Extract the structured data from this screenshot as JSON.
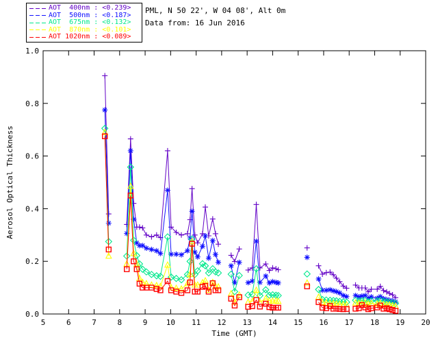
{
  "header": {
    "location_line": "PML, N 50 22', W 04 08', Alt 0m",
    "date_line": "Data from: 16 Jun 2016"
  },
  "legend": {
    "entries": [
      {
        "label": "AOT  400nm : <0.239>",
        "color": "#6100c6",
        "symbol": "plus"
      },
      {
        "label": "AOT  500nm : <0.187>",
        "color": "#0f0fff",
        "symbol": "asterisk"
      },
      {
        "label": "AOT  675nm : <0.132>",
        "color": "#00e88c",
        "symbol": "diamond"
      },
      {
        "label": "AOT  870nm : <0.101>",
        "color": "#ffff00",
        "symbol": "triangle"
      },
      {
        "label": "AOT 1020nm : <0.089>",
        "color": "#ff0000",
        "symbol": "square"
      }
    ]
  },
  "chart_data": {
    "type": "line",
    "title": "",
    "xlabel": "Time (GMT)",
    "ylabel": "Aerosol Optical Thickness",
    "xlim": [
      5,
      20
    ],
    "ylim": [
      0.0,
      1.0
    ],
    "xticks": [
      5,
      6,
      7,
      8,
      9,
      10,
      11,
      12,
      13,
      14,
      15,
      16,
      17,
      18,
      19,
      20
    ],
    "yticks": [
      0.0,
      0.2,
      0.4,
      0.6,
      0.8,
      1.0
    ],
    "ytick_labels": [
      "0.0",
      "0.2",
      "0.4",
      "0.6",
      "0.8",
      "1.0"
    ],
    "grid": false,
    "legend_position": "top-left-outside",
    "gap_threshold_hours": 0.3,
    "axis_color": "#000000",
    "x": [
      7.42,
      7.57,
      8.28,
      8.43,
      8.55,
      8.67,
      8.78,
      8.9,
      9.05,
      9.25,
      9.45,
      9.6,
      9.88,
      10.02,
      10.22,
      10.42,
      10.66,
      10.76,
      10.84,
      10.95,
      11.06,
      11.25,
      11.36,
      11.49,
      11.65,
      11.76,
      11.87,
      12.37,
      12.51,
      12.69,
      13.04,
      13.2,
      13.36,
      13.5,
      13.73,
      13.87,
      14.0,
      14.13,
      14.22,
      15.35,
      15.8,
      15.95,
      16.1,
      16.25,
      16.38,
      16.5,
      16.63,
      16.77,
      16.9,
      17.25,
      17.38,
      17.5,
      17.63,
      17.75,
      17.87,
      18.1,
      18.22,
      18.35,
      18.47,
      18.58,
      18.7,
      18.82
    ],
    "series": [
      {
        "name": "AOT 400nm",
        "mean": 0.239,
        "color": "#6100c6",
        "symbol": "plus",
        "values": [
          0.905,
          0.38,
          0.34,
          0.665,
          0.42,
          0.33,
          0.33,
          0.327,
          0.3,
          0.293,
          0.3,
          0.29,
          0.62,
          0.33,
          0.31,
          0.3,
          0.305,
          0.358,
          0.476,
          0.3,
          0.27,
          0.305,
          0.406,
          0.297,
          0.361,
          0.305,
          0.265,
          0.223,
          0.199,
          0.247,
          0.167,
          0.175,
          0.416,
          0.175,
          0.19,
          0.165,
          0.175,
          0.172,
          0.168,
          0.251,
          0.183,
          0.151,
          0.157,
          0.159,
          0.149,
          0.136,
          0.123,
          0.106,
          0.098,
          0.11,
          0.099,
          0.099,
          0.099,
          0.084,
          0.094,
          0.094,
          0.105,
          0.089,
          0.084,
          0.078,
          0.073,
          0.062
        ]
      },
      {
        "name": "AOT 500nm",
        "mean": 0.187,
        "color": "#0f0fff",
        "symbol": "asterisk",
        "values": [
          0.775,
          0.345,
          0.306,
          0.62,
          0.36,
          0.27,
          0.26,
          0.26,
          0.25,
          0.245,
          0.24,
          0.23,
          0.47,
          0.227,
          0.227,
          0.225,
          0.24,
          0.289,
          0.39,
          0.235,
          0.217,
          0.257,
          0.297,
          0.212,
          0.279,
          0.226,
          0.196,
          0.183,
          0.119,
          0.196,
          0.119,
          0.125,
          0.276,
          0.12,
          0.144,
          0.118,
          0.123,
          0.12,
          0.118,
          0.215,
          0.133,
          0.09,
          0.09,
          0.092,
          0.088,
          0.085,
          0.08,
          0.07,
          0.066,
          0.07,
          0.065,
          0.068,
          0.07,
          0.06,
          0.065,
          0.06,
          0.066,
          0.058,
          0.055,
          0.052,
          0.05,
          0.046
        ]
      },
      {
        "name": "AOT 675nm",
        "mean": 0.132,
        "color": "#00e88c",
        "symbol": "diamond",
        "values": [
          0.705,
          0.275,
          0.22,
          0.558,
          0.28,
          0.222,
          0.19,
          0.17,
          0.16,
          0.15,
          0.145,
          0.143,
          0.293,
          0.14,
          0.135,
          0.13,
          0.15,
          0.2,
          0.285,
          0.15,
          0.164,
          0.191,
          0.183,
          0.156,
          0.172,
          0.16,
          0.156,
          0.151,
          0.085,
          0.146,
          0.072,
          0.075,
          0.172,
          0.07,
          0.092,
          0.071,
          0.073,
          0.071,
          0.07,
          0.152,
          0.093,
          0.055,
          0.053,
          0.052,
          0.051,
          0.05,
          0.048,
          0.046,
          0.045,
          0.052,
          0.05,
          0.05,
          0.052,
          0.047,
          0.05,
          0.05,
          0.052,
          0.048,
          0.046,
          0.044,
          0.042,
          0.04
        ]
      },
      {
        "name": "AOT 870nm",
        "mean": 0.101,
        "color": "#ffff00",
        "symbol": "triangle",
        "values": [
          0.69,
          0.22,
          0.19,
          0.485,
          0.23,
          0.19,
          0.135,
          0.12,
          0.115,
          0.11,
          0.108,
          0.105,
          0.186,
          0.1,
          0.098,
          0.095,
          0.115,
          0.15,
          0.275,
          0.11,
          0.11,
          0.119,
          0.126,
          0.09,
          0.12,
          0.105,
          0.103,
          0.077,
          0.045,
          0.072,
          0.045,
          0.048,
          0.09,
          0.045,
          0.058,
          0.05,
          0.049,
          0.05,
          0.048,
          0.118,
          0.064,
          0.045,
          0.042,
          0.04,
          0.04,
          0.038,
          0.037,
          0.036,
          0.035,
          0.042,
          0.04,
          0.04,
          0.042,
          0.038,
          0.04,
          0.038,
          0.04,
          0.036,
          0.035,
          0.034,
          0.032,
          0.03
        ]
      },
      {
        "name": "AOT 1020nm",
        "mean": 0.089,
        "color": "#ff0000",
        "symbol": "square",
        "values": [
          0.675,
          0.245,
          0.17,
          0.45,
          0.2,
          0.17,
          0.115,
          0.1,
          0.1,
          0.1,
          0.095,
          0.09,
          0.125,
          0.09,
          0.085,
          0.08,
          0.09,
          0.12,
          0.267,
          0.085,
          0.085,
          0.103,
          0.107,
          0.085,
          0.117,
          0.09,
          0.09,
          0.058,
          0.032,
          0.064,
          0.027,
          0.03,
          0.053,
          0.028,
          0.039,
          0.026,
          0.024,
          0.024,
          0.024,
          0.105,
          0.045,
          0.024,
          0.022,
          0.03,
          0.02,
          0.02,
          0.019,
          0.018,
          0.019,
          0.02,
          0.022,
          0.034,
          0.025,
          0.018,
          0.022,
          0.025,
          0.032,
          0.02,
          0.022,
          0.018,
          0.015,
          0.012
        ]
      }
    ]
  }
}
